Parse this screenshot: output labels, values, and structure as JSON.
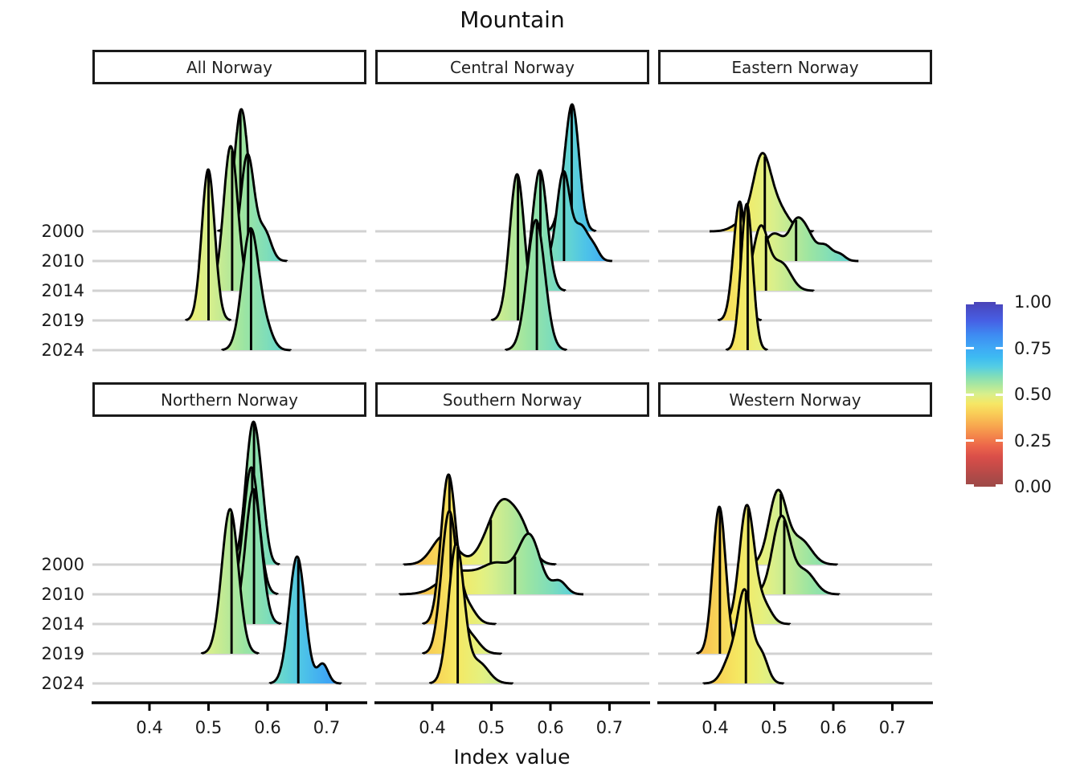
{
  "title": "Mountain",
  "xlabel": "Index value",
  "chart_data": {
    "type": "ridgeline",
    "title": "Mountain",
    "xlabel": "Index value",
    "x_ticks": [
      0.4,
      0.5,
      0.6,
      0.7
    ],
    "x_tick_labels": [
      "0.4",
      "0.5",
      "0.6",
      "0.7"
    ],
    "x_domain": [
      0.303,
      0.767
    ],
    "years": [
      "2000",
      "2010",
      "2014",
      "2019",
      "2024"
    ],
    "grid_color": "#d2d2d2",
    "stroke_color": "#000000",
    "fill_stops": [
      {
        "v": 0.303,
        "c": "#f0914c"
      },
      {
        "v": 0.35,
        "c": "#f7ad4f"
      },
      {
        "v": 0.4,
        "c": "#f8d156"
      },
      {
        "v": 0.44,
        "c": "#f5e862"
      },
      {
        "v": 0.48,
        "c": "#e6f07d"
      },
      {
        "v": 0.5,
        "c": "#d8ef8c"
      },
      {
        "v": 0.53,
        "c": "#bce996"
      },
      {
        "v": 0.56,
        "c": "#9ce5a2"
      },
      {
        "v": 0.6,
        "c": "#7eddba"
      },
      {
        "v": 0.63,
        "c": "#63d4d3"
      },
      {
        "v": 0.66,
        "c": "#4dc3e8"
      },
      {
        "v": 0.7,
        "c": "#3fa7f4"
      },
      {
        "v": 0.767,
        "c": "#3b8df0"
      }
    ],
    "colorbar": {
      "labels": [
        "1.00",
        "0.75",
        "0.50",
        "0.25",
        "0.00"
      ],
      "values": [
        1.0,
        0.75,
        0.5,
        0.25,
        0.0
      ],
      "stops": [
        {
          "v": 0.0,
          "c": "#9d4a47"
        },
        {
          "v": 0.05,
          "c": "#ad4a48"
        },
        {
          "v": 0.1,
          "c": "#c24b48"
        },
        {
          "v": 0.16,
          "c": "#d94e49"
        },
        {
          "v": 0.22,
          "c": "#ec654a"
        },
        {
          "v": 0.28,
          "c": "#f4894b"
        },
        {
          "v": 0.34,
          "c": "#f8ad50"
        },
        {
          "v": 0.4,
          "c": "#f9cf58"
        },
        {
          "v": 0.45,
          "c": "#f6e765"
        },
        {
          "v": 0.5,
          "c": "#d9ef8b"
        },
        {
          "v": 0.55,
          "c": "#abe79f"
        },
        {
          "v": 0.6,
          "c": "#7eddbb"
        },
        {
          "v": 0.65,
          "c": "#54cde4"
        },
        {
          "v": 0.7,
          "c": "#3dbbf2"
        },
        {
          "v": 0.75,
          "c": "#3fa9f5"
        },
        {
          "v": 0.82,
          "c": "#3e8cf2"
        },
        {
          "v": 0.9,
          "c": "#475fe4"
        },
        {
          "v": 1.0,
          "c": "#4a43b7"
        }
      ]
    },
    "panels": [
      {
        "name": "All Norway",
        "row": 0,
        "col": 0,
        "ridges": [
          {
            "year": "2000",
            "median": 0.554,
            "components": [
              [
                0.5555,
                0.0115,
                152
              ]
            ]
          },
          {
            "year": "2010",
            "median": 0.567,
            "components": [
              [
                0.566,
                0.0115,
                132
              ],
              [
                0.595,
                0.011,
                36
              ]
            ]
          },
          {
            "year": "2014",
            "median": 0.54,
            "components": [
              [
                0.5375,
                0.012,
                180
              ]
            ]
          },
          {
            "year": "2019",
            "median": 0.5,
            "components": [
              [
                0.4995,
                0.011,
                188
              ]
            ]
          },
          {
            "year": "2024",
            "median": 0.572,
            "components": [
              [
                0.571,
                0.014,
                150
              ],
              [
                0.598,
                0.012,
                22
              ]
            ]
          }
        ]
      },
      {
        "name": "Central Norway",
        "row": 0,
        "col": 1,
        "ridges": [
          {
            "year": "2000",
            "median": 0.636,
            "components": [
              [
                0.637,
                0.0115,
                156
              ],
              [
                0.618,
                0.009,
                18
              ]
            ]
          },
          {
            "year": "2010",
            "median": 0.623,
            "components": [
              [
                0.622,
                0.011,
                110
              ],
              [
                0.652,
                0.012,
                42
              ],
              [
                0.674,
                0.009,
                14
              ]
            ]
          },
          {
            "year": "2014",
            "median": 0.583,
            "components": [
              [
                0.582,
                0.0125,
                150
              ]
            ]
          },
          {
            "year": "2019",
            "median": 0.545,
            "components": [
              [
                0.5435,
                0.0125,
                182
              ]
            ]
          },
          {
            "year": "2024",
            "median": 0.577,
            "components": [
              [
                0.5755,
                0.015,
                162
              ]
            ]
          }
        ]
      },
      {
        "name": "Eastern Norway",
        "row": 0,
        "col": 2,
        "ridges": [
          {
            "year": "2000",
            "median": 0.484,
            "components": [
              [
                0.445,
                0.016,
                10
              ],
              [
                0.479,
                0.015,
                90
              ],
              [
                0.508,
                0.017,
                26
              ]
            ]
          },
          {
            "year": "2010",
            "median": 0.537,
            "components": [
              [
                0.5,
                0.018,
                34
              ],
              [
                0.538,
                0.012,
                44
              ],
              [
                0.557,
                0.011,
                26
              ],
              [
                0.585,
                0.013,
                20
              ],
              [
                0.612,
                0.009,
                7
              ]
            ]
          },
          {
            "year": "2014",
            "median": 0.486,
            "components": [
              [
                0.477,
                0.013,
                78
              ],
              [
                0.512,
                0.016,
                34
              ]
            ]
          },
          {
            "year": "2019",
            "median": 0.443,
            "components": [
              [
                0.4415,
                0.0105,
                148
              ]
            ]
          },
          {
            "year": "2024",
            "median": 0.455,
            "components": [
              [
                0.4535,
                0.01,
                182
              ]
            ]
          }
        ]
      },
      {
        "name": "Northern Norway",
        "row": 1,
        "col": 0,
        "ridges": [
          {
            "year": "2000",
            "median": 0.577,
            "components": [
              [
                0.5755,
                0.0125,
                175
              ],
              [
                0.592,
                0.008,
                22
              ]
            ]
          },
          {
            "year": "2010",
            "median": 0.574,
            "components": [
              [
                0.5725,
                0.013,
                158
              ]
            ]
          },
          {
            "year": "2014",
            "median": 0.577,
            "components": [
              [
                0.576,
                0.0135,
                168
              ]
            ]
          },
          {
            "year": "2019",
            "median": 0.539,
            "components": [
              [
                0.5365,
                0.014,
                180
              ]
            ]
          },
          {
            "year": "2024",
            "median": 0.652,
            "components": [
              [
                0.65,
                0.0135,
                158
              ],
              [
                0.6935,
                0.009,
                24
              ]
            ]
          }
        ]
      },
      {
        "name": "Southern Norway",
        "row": 1,
        "col": 1,
        "ridges": [
          {
            "year": "2000",
            "median": 0.499,
            "components": [
              [
                0.42,
                0.02,
                36
              ],
              [
                0.52,
                0.026,
                80
              ],
              [
                0.555,
                0.015,
                20
              ]
            ]
          },
          {
            "year": "2010",
            "median": 0.54,
            "components": [
              [
                0.44,
                0.028,
                26
              ],
              [
                0.51,
                0.03,
                38
              ],
              [
                0.565,
                0.018,
                68
              ],
              [
                0.615,
                0.012,
                16
              ]
            ]
          },
          {
            "year": "2014",
            "median": 0.429,
            "components": [
              [
                0.427,
                0.0125,
                182
              ],
              [
                0.456,
                0.015,
                26
              ]
            ]
          },
          {
            "year": "2019",
            "median": 0.431,
            "components": [
              [
                0.4285,
                0.013,
                175
              ],
              [
                0.462,
                0.016,
                24
              ]
            ]
          },
          {
            "year": "2024",
            "median": 0.443,
            "components": [
              [
                0.4405,
                0.013,
                172
              ],
              [
                0.478,
                0.017,
                26
              ]
            ]
          }
        ]
      },
      {
        "name": "Western Norway",
        "row": 1,
        "col": 2,
        "ridges": [
          {
            "year": "2000",
            "median": 0.511,
            "components": [
              [
                0.506,
                0.015,
                90
              ],
              [
                0.545,
                0.018,
                30
              ]
            ]
          },
          {
            "year": "2010",
            "median": 0.517,
            "components": [
              [
                0.512,
                0.015,
                96
              ],
              [
                0.552,
                0.017,
                28
              ]
            ]
          },
          {
            "year": "2014",
            "median": 0.456,
            "components": [
              [
                0.4535,
                0.0125,
                146
              ],
              [
                0.482,
                0.013,
                24
              ]
            ]
          },
          {
            "year": "2019",
            "median": 0.408,
            "components": [
              [
                0.407,
                0.011,
                183
              ]
            ]
          },
          {
            "year": "2024",
            "median": 0.452,
            "components": [
              [
                0.428,
                0.014,
                34
              ],
              [
                0.4505,
                0.0115,
                106
              ],
              [
                0.478,
                0.011,
                36
              ]
            ]
          }
        ]
      }
    ]
  }
}
